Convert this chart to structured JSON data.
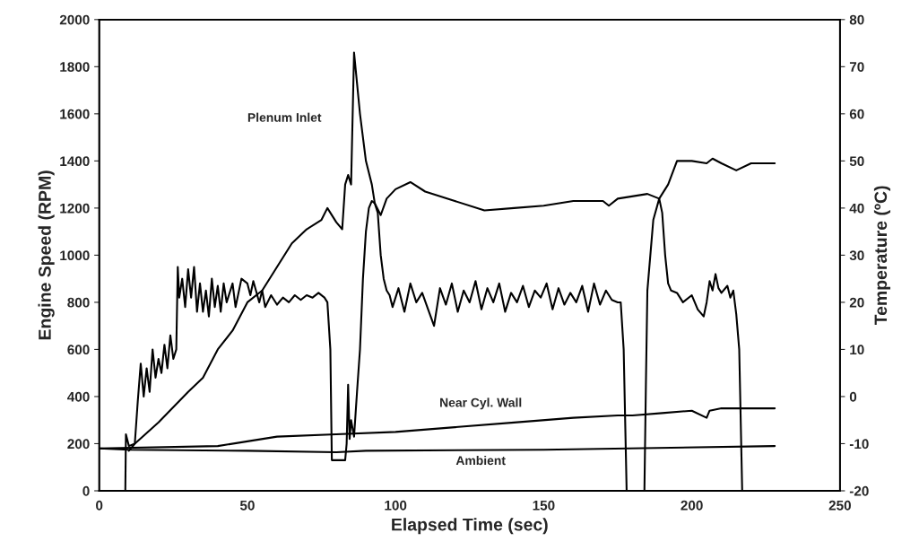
{
  "chart_data": {
    "type": "line",
    "xlabel": "Elapsed Time (sec)",
    "ylabel": "Engine Speed (RPM)",
    "y2label": "Temperature (ºC)",
    "xlim": [
      0,
      250
    ],
    "xticks": [
      0,
      50,
      100,
      150,
      200,
      250
    ],
    "ylim": [
      0,
      2000
    ],
    "yticks": [
      0,
      200,
      400,
      600,
      800,
      1000,
      1200,
      1400,
      1600,
      1800,
      2000
    ],
    "y2lim": [
      -20,
      80
    ],
    "y2ticks": [
      -20,
      -10,
      0,
      10,
      20,
      30,
      40,
      50,
      60,
      70,
      80
    ],
    "grid": false,
    "legend": false,
    "marker": "none",
    "line_style": "solid",
    "series": [
      {
        "color": "#000000",
        "x": [
          0,
          8.8,
          9,
          10,
          12,
          13,
          14,
          15,
          16,
          17,
          18,
          19,
          20,
          21,
          22,
          23,
          24,
          25,
          26,
          26.5,
          27,
          28,
          29,
          30,
          31,
          32,
          33,
          34,
          35,
          36,
          37,
          38,
          39,
          40,
          41,
          42,
          43,
          45,
          46,
          48,
          50,
          51,
          52,
          54,
          55,
          56,
          58,
          60,
          62,
          64,
          66,
          68,
          70,
          72,
          74,
          76,
          77,
          78,
          78.5,
          81,
          83,
          83.5,
          84,
          84.5,
          85,
          86,
          87,
          88,
          89,
          90,
          91,
          92,
          93,
          94,
          95,
          96,
          97,
          98,
          99,
          101,
          103,
          105,
          107,
          109,
          111,
          113,
          115,
          117,
          119,
          121,
          123,
          125,
          127,
          129,
          131,
          133,
          135,
          137,
          139,
          141,
          143,
          145,
          147,
          149,
          151,
          153,
          155,
          157,
          159,
          161,
          163,
          165,
          167,
          169,
          171,
          173,
          175,
          176,
          177,
          178,
          184,
          184.5,
          185,
          187,
          189,
          190,
          191,
          192,
          193,
          195,
          197,
          200,
          202,
          204,
          205,
          206,
          207,
          208,
          209,
          210,
          212,
          213,
          214,
          215,
          216,
          217
        ],
        "values": [
          0,
          0,
          240,
          190,
          200,
          380,
          540,
          400,
          520,
          420,
          600,
          480,
          560,
          500,
          620,
          520,
          660,
          560,
          600,
          950,
          820,
          900,
          780,
          940,
          820,
          950,
          760,
          880,
          760,
          850,
          740,
          900,
          780,
          870,
          760,
          880,
          800,
          880,
          780,
          900,
          880,
          830,
          890,
          800,
          850,
          780,
          830,
          790,
          820,
          800,
          830,
          810,
          830,
          820,
          840,
          820,
          800,
          600,
          130,
          130,
          130,
          200,
          450,
          220,
          300,
          230,
          420,
          600,
          900,
          1100,
          1200,
          1230,
          1220,
          1180,
          1000,
          900,
          850,
          830,
          780,
          860,
          760,
          880,
          800,
          840,
          770,
          700,
          860,
          790,
          880,
          760,
          850,
          800,
          890,
          770,
          860,
          800,
          880,
          760,
          840,
          800,
          870,
          780,
          850,
          820,
          880,
          770,
          860,
          790,
          840,
          800,
          870,
          760,
          880,
          790,
          850,
          810,
          800,
          800,
          600,
          0,
          0,
          450,
          850,
          1150,
          1240,
          1180,
          1000,
          880,
          850,
          840,
          800,
          830,
          770,
          740,
          800,
          890,
          850,
          920,
          860,
          840,
          870,
          820,
          850,
          750,
          600,
          0
        ]
      },
      {
        "name": "Plenum Inlet",
        "color": "#000000",
        "axis": "y2",
        "x": [
          10,
          12,
          20,
          30,
          35,
          40,
          45,
          50,
          55,
          60,
          65,
          70,
          75,
          77,
          80,
          82,
          83,
          84,
          85,
          86,
          88,
          90,
          92,
          93,
          95,
          97,
          100,
          105,
          110,
          115,
          120,
          130,
          140,
          150,
          160,
          170,
          172,
          175,
          185,
          189,
          192,
          195,
          200,
          205,
          207,
          210,
          215,
          220,
          228
        ],
        "values": [
          -11.5,
          -10,
          -5.5,
          1,
          4,
          10,
          14,
          20,
          22.5,
          27.5,
          32.5,
          35.5,
          37.5,
          40,
          37,
          35.5,
          45,
          47,
          45,
          73,
          60,
          50,
          45,
          41,
          38.5,
          42,
          44,
          45.5,
          43.5,
          42.5,
          41.5,
          39.5,
          40,
          40.5,
          41.5,
          41.5,
          40.5,
          42,
          43,
          42,
          45,
          50,
          50,
          49.5,
          50.5,
          49.5,
          48,
          49.5,
          49.5
        ]
      },
      {
        "name": "Near Cyl. Wall",
        "color": "#000000",
        "axis": "y2",
        "x": [
          0,
          40,
          50,
          60,
          80,
          100,
          120,
          140,
          160,
          175,
          180,
          190,
          200,
          205,
          206,
          210,
          220,
          228
        ],
        "values": [
          -11,
          -10.5,
          -9.5,
          -8.5,
          -8,
          -7.5,
          -6.5,
          -5.5,
          -4.5,
          -4,
          -4,
          -3.5,
          -3,
          -4.5,
          -3,
          -2.5,
          -2.5,
          -2.5
        ]
      },
      {
        "name": "Ambient",
        "color": "#000000",
        "axis": "y2",
        "x": [
          0,
          10,
          50,
          80,
          90,
          150,
          228
        ],
        "values": [
          -11,
          -11.3,
          -11.5,
          -11.8,
          -11.5,
          -11.3,
          -10.5
        ]
      }
    ]
  }
}
